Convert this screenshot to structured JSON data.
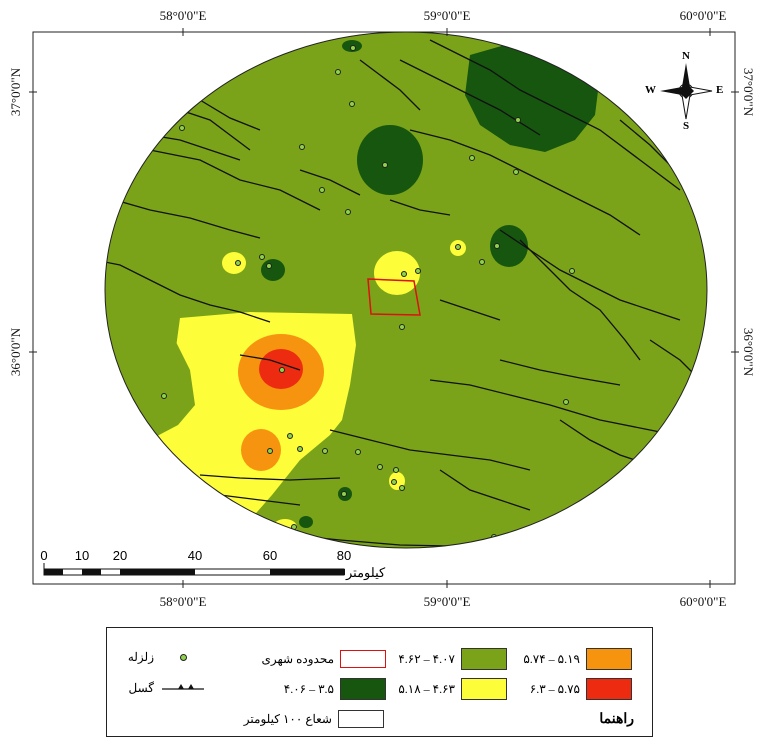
{
  "map": {
    "top_coords": [
      "58°0'0\"E",
      "59°0'0\"E",
      "60°0'0\"E"
    ],
    "bottom_coords": [
      "58°0'0\"E",
      "59°0'0\"E",
      "60°0'0\"E"
    ],
    "left_coords": [
      "37°0'0\"N",
      "36°0'0\"N"
    ],
    "right_coords": [
      "37°0'0\"N",
      "36°0'0\"N"
    ]
  },
  "compass": {
    "n": "N",
    "s": "S",
    "e": "E",
    "w": "W",
    "icon": "north-arrow-icon"
  },
  "scale_bar": {
    "labels": [
      "0",
      "10",
      "20",
      "40",
      "60",
      "80"
    ],
    "unit": "کیلومتر"
  },
  "legend": {
    "title": "راهنما",
    "earthquake": "زلزله",
    "fault": "گسل",
    "radius": "شعاع ۱۰۰ کیلومتر",
    "urban": "محدوده شهری",
    "class_1": "۳.۵ – ۴.۰۶",
    "class_2": "۴.۰۷ – ۴.۶۲",
    "class_3": "۴.۶۳ – ۵.۱۸",
    "class_4": "۵.۱۹ – ۵.۷۴",
    "class_5": "۵.۷۵ – ۶.۳",
    "colors": {
      "class_1": "#16560f",
      "class_2": "#7aa319",
      "class_3": "#fdfd3a",
      "class_4": "#f7940f",
      "class_5": "#ed2b11"
    }
  }
}
